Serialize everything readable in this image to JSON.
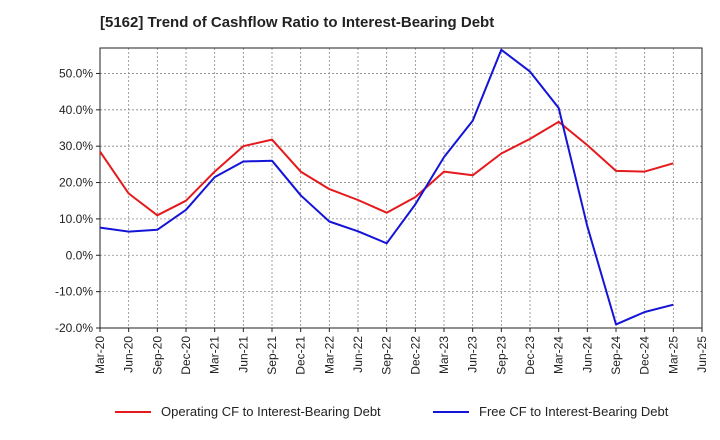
{
  "title": "[5162]  Trend of Cashflow Ratio to Interest-Bearing Debt",
  "colors": {
    "operating": "#e41a1c",
    "free": "#1414d8",
    "grid": "#888888",
    "axis": "#222222"
  },
  "legend": {
    "operating": "Operating CF to Interest-Bearing Debt",
    "free": "Free CF to Interest-Bearing Debt"
  },
  "chart_data": {
    "type": "line",
    "title": "[5162]  Trend of Cashflow Ratio to Interest-Bearing Debt",
    "xlabel": "",
    "ylabel": "",
    "ylim": [
      -20,
      57
    ],
    "grid": true,
    "legend_position": "bottom",
    "x": [
      "Mar-20",
      "Jun-20",
      "Sep-20",
      "Dec-20",
      "Mar-21",
      "Jun-21",
      "Sep-21",
      "Dec-21",
      "Mar-22",
      "Jun-22",
      "Sep-22",
      "Dec-22",
      "Mar-23",
      "Jun-23",
      "Sep-23",
      "Dec-23",
      "Mar-24",
      "Jun-24",
      "Sep-24",
      "Dec-24",
      "Mar-25",
      "Jun-25"
    ],
    "y_ticks": [
      {
        "value": 50,
        "label": "50.0%"
      },
      {
        "value": 40,
        "label": "40.0%"
      },
      {
        "value": 30,
        "label": "30.0%"
      },
      {
        "value": 20,
        "label": "20.0%"
      },
      {
        "value": 10,
        "label": "10.0%"
      },
      {
        "value": 0,
        "label": "0.0%"
      },
      {
        "value": -10,
        "label": "-10.0%"
      },
      {
        "value": -20,
        "label": "-20.0%"
      }
    ],
    "series": [
      {
        "name": "Operating CF to Interest-Bearing Debt",
        "color": "#e41a1c",
        "values": [
          28.5,
          17,
          11,
          15,
          23,
          30,
          31.8,
          23,
          18.2,
          15.2,
          11.7,
          16,
          23,
          22,
          28,
          32,
          36.7,
          30.3,
          23.2,
          23,
          25.3,
          null
        ]
      },
      {
        "name": "Free CF to Interest-Bearing Debt",
        "color": "#1414d8",
        "values": [
          7.6,
          6.5,
          7,
          12.5,
          21.5,
          25.8,
          26,
          16.5,
          9.3,
          6.6,
          3.3,
          14,
          27,
          37,
          56.5,
          50.5,
          40.5,
          8,
          -19,
          -15.6,
          -13.6,
          null
        ]
      }
    ]
  }
}
